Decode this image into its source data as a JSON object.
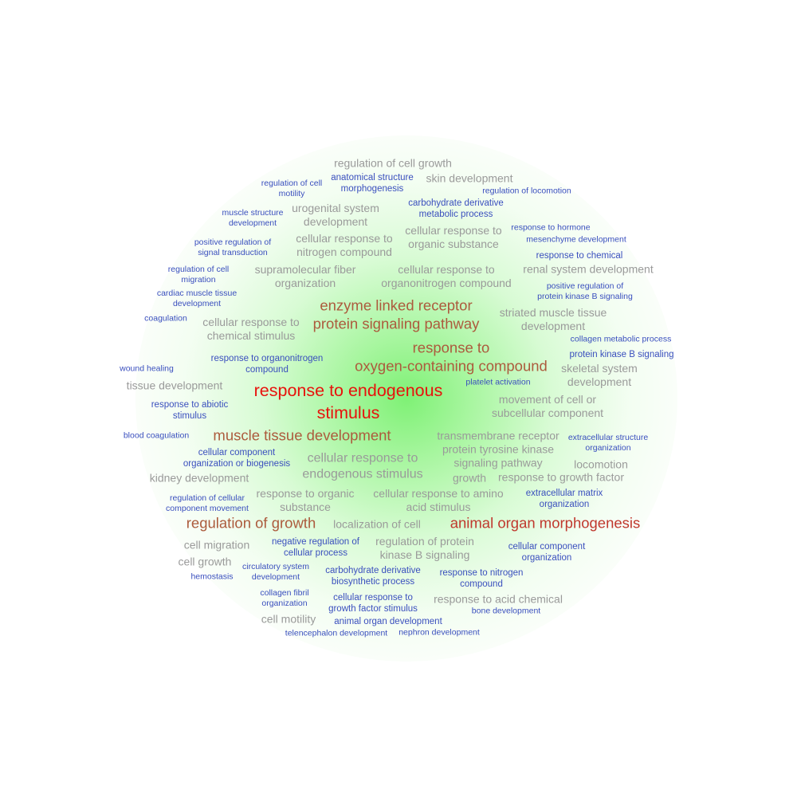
{
  "terms": [
    {
      "id": "regulation-of-cell-growth",
      "lines": [
        "regulation of cell growth"
      ]
    },
    {
      "id": "anatomical-structure-morphogenesis",
      "lines": [
        "anatomical structure",
        "morphogenesis"
      ]
    },
    {
      "id": "skin-development",
      "lines": [
        "skin development"
      ]
    },
    {
      "id": "regulation-of-cell-motility",
      "lines": [
        "regulation of cell",
        "motility"
      ]
    },
    {
      "id": "regulation-of-locomotion",
      "lines": [
        "regulation of locomotion"
      ]
    },
    {
      "id": "carbohydrate-derivative-metabolic-process",
      "lines": [
        "carbohydrate derivative",
        "metabolic process"
      ]
    },
    {
      "id": "muscle-structure-development",
      "lines": [
        "muscle structure",
        "development"
      ]
    },
    {
      "id": "urogenital-system-development",
      "lines": [
        "urogenital system",
        "development"
      ]
    },
    {
      "id": "response-to-hormone",
      "lines": [
        "response to hormone"
      ]
    },
    {
      "id": "cellular-response-to-organic-substance",
      "lines": [
        "cellular response to",
        "organic substance"
      ]
    },
    {
      "id": "mesenchyme-development",
      "lines": [
        "mesenchyme development"
      ]
    },
    {
      "id": "positive-regulation-of-signal-transduction",
      "lines": [
        "positive regulation of",
        "signal transduction"
      ]
    },
    {
      "id": "cellular-response-to-nitrogen-compound",
      "lines": [
        "cellular response to",
        "nitrogen compound"
      ]
    },
    {
      "id": "response-to-chemical",
      "lines": [
        "response to chemical"
      ]
    },
    {
      "id": "regulation-of-cell-migration",
      "lines": [
        "regulation of cell",
        "migration"
      ]
    },
    {
      "id": "supramolecular-fiber-organization",
      "lines": [
        "supramolecular fiber",
        "organization"
      ]
    },
    {
      "id": "cellular-response-to-organonitrogen-compound",
      "lines": [
        "cellular response to",
        "organonitrogen compound"
      ]
    },
    {
      "id": "renal-system-development",
      "lines": [
        "renal system development"
      ]
    },
    {
      "id": "cardiac-muscle-tissue-development",
      "lines": [
        "cardiac muscle tissue",
        "development"
      ]
    },
    {
      "id": "positive-regulation-of-protein-kinase-b-signaling",
      "lines": [
        "positive regulation of",
        "protein kinase B signaling"
      ]
    },
    {
      "id": "enzyme-linked-receptor-protein-signaling-pathway",
      "lines": [
        "enzyme linked receptor",
        "protein signaling pathway"
      ]
    },
    {
      "id": "coagulation",
      "lines": [
        "coagulation"
      ]
    },
    {
      "id": "striated-muscle-tissue-development",
      "lines": [
        "striated muscle tissue",
        "development"
      ]
    },
    {
      "id": "cellular-response-to-chemical-stimulus",
      "lines": [
        "cellular response to",
        "chemical stimulus"
      ]
    },
    {
      "id": "collagen-metabolic-process",
      "lines": [
        "collagen metabolic process"
      ]
    },
    {
      "id": "response-to-oxygen-containing-compound",
      "lines": [
        "response to",
        "oxygen-containing compound"
      ]
    },
    {
      "id": "protein-kinase-b-signaling",
      "lines": [
        "protein kinase B signaling"
      ]
    },
    {
      "id": "response-to-organonitrogen-compound",
      "lines": [
        "response to organonitrogen",
        "compound"
      ]
    },
    {
      "id": "wound-healing",
      "lines": [
        "wound healing"
      ]
    },
    {
      "id": "skeletal-system-development",
      "lines": [
        "skeletal system",
        "development"
      ]
    },
    {
      "id": "platelet-activation",
      "lines": [
        "platelet activation"
      ]
    },
    {
      "id": "tissue-development",
      "lines": [
        "tissue development"
      ]
    },
    {
      "id": "response-to-endogenous-stimulus",
      "lines": [
        "response to endogenous",
        "stimulus"
      ]
    },
    {
      "id": "movement-of-cell-or-subcellular-component",
      "lines": [
        "movement of cell or",
        "subcellular component"
      ]
    },
    {
      "id": "response-to-abiotic-stimulus",
      "lines": [
        "response to abiotic",
        "stimulus"
      ]
    },
    {
      "id": "blood-coagulation",
      "lines": [
        "blood coagulation"
      ]
    },
    {
      "id": "muscle-tissue-development",
      "lines": [
        "muscle tissue development"
      ]
    },
    {
      "id": "transmembrane-receptor-protein-tyrosine-kinase-signaling-pathway",
      "lines": [
        "transmembrane receptor",
        "protein tyrosine kinase",
        "signaling pathway"
      ]
    },
    {
      "id": "extracellular-structure-organization",
      "lines": [
        "extracellular structure",
        "organization"
      ]
    },
    {
      "id": "cellular-component-organization-or-biogenesis",
      "lines": [
        "cellular component",
        "organization or biogenesis"
      ]
    },
    {
      "id": "cellular-response-to-endogenous-stimulus",
      "lines": [
        "cellular response to",
        "endogenous stimulus"
      ]
    },
    {
      "id": "locomotion",
      "lines": [
        "locomotion"
      ]
    },
    {
      "id": "kidney-development",
      "lines": [
        "kidney development"
      ]
    },
    {
      "id": "growth",
      "lines": [
        "growth"
      ]
    },
    {
      "id": "response-to-growth-factor",
      "lines": [
        "response to growth factor"
      ]
    },
    {
      "id": "regulation-of-cellular-component-movement",
      "lines": [
        "regulation of cellular",
        "component movement"
      ]
    },
    {
      "id": "response-to-organic-substance",
      "lines": [
        "response to organic",
        "substance"
      ]
    },
    {
      "id": "cellular-response-to-amino-acid-stimulus",
      "lines": [
        "cellular response to amino",
        "acid stimulus"
      ]
    },
    {
      "id": "extracellular-matrix-organization",
      "lines": [
        "extracellular matrix",
        "organization"
      ]
    },
    {
      "id": "regulation-of-growth",
      "lines": [
        "regulation of growth"
      ]
    },
    {
      "id": "localization-of-cell",
      "lines": [
        "localization of cell"
      ]
    },
    {
      "id": "animal-organ-morphogenesis",
      "lines": [
        "animal organ morphogenesis"
      ]
    },
    {
      "id": "cell-migration",
      "lines": [
        "cell migration"
      ]
    },
    {
      "id": "negative-regulation-of-cellular-process",
      "lines": [
        "negative regulation of",
        "cellular process"
      ]
    },
    {
      "id": "regulation-of-protein-kinase-b-signaling",
      "lines": [
        "regulation of protein",
        "kinase B signaling"
      ]
    },
    {
      "id": "cellular-component-organization",
      "lines": [
        "cellular component",
        "organization"
      ]
    },
    {
      "id": "cell-growth",
      "lines": [
        "cell growth"
      ]
    },
    {
      "id": "circulatory-system-development",
      "lines": [
        "circulatory system",
        "development"
      ]
    },
    {
      "id": "hemostasis",
      "lines": [
        "hemostasis"
      ]
    },
    {
      "id": "carbohydrate-derivative-biosynthetic-process",
      "lines": [
        "carbohydrate derivative",
        "biosynthetic process"
      ]
    },
    {
      "id": "response-to-nitrogen-compound",
      "lines": [
        "response to nitrogen",
        "compound"
      ]
    },
    {
      "id": "collagen-fibril-organization",
      "lines": [
        "collagen fibril",
        "organization"
      ]
    },
    {
      "id": "cellular-response-to-growth-factor-stimulus",
      "lines": [
        "cellular response to",
        "growth factor stimulus"
      ]
    },
    {
      "id": "response-to-acid-chemical",
      "lines": [
        "response to acid chemical"
      ]
    },
    {
      "id": "cell-motility",
      "lines": [
        "cell motility"
      ]
    },
    {
      "id": "animal-organ-development",
      "lines": [
        "animal organ development"
      ]
    },
    {
      "id": "bone-development",
      "lines": [
        "bone development"
      ]
    },
    {
      "id": "telencephalon-development",
      "lines": [
        "telencephalon development"
      ]
    },
    {
      "id": "nephron-development",
      "lines": [
        "nephron development"
      ]
    }
  ]
}
